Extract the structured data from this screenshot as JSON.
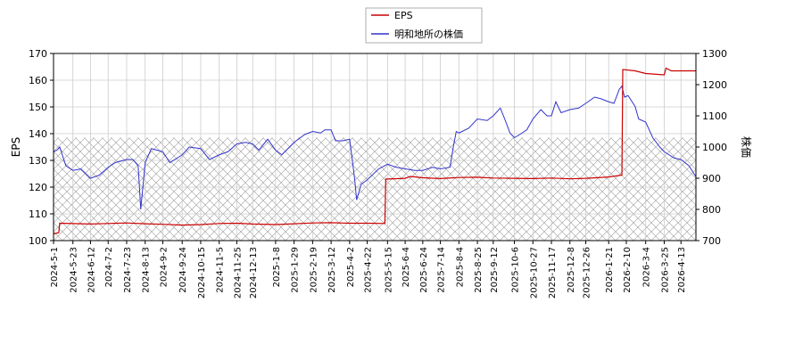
{
  "chart_data": {
    "type": "line",
    "title": "",
    "xlabel": "",
    "ylabel_left": "EPS",
    "ylabel_right": "株価",
    "ylim_left": [
      100,
      170
    ],
    "ylim_right": [
      700,
      1300
    ],
    "yticks_left": [
      100,
      110,
      120,
      130,
      140,
      150,
      160,
      170
    ],
    "yticks_right": [
      700,
      800,
      900,
      1000,
      1100,
      1200,
      1300
    ],
    "x_range": [
      "2024-05-01",
      "2026-04-30"
    ],
    "x_ticks": [
      "2024-5-1",
      "2024-5-23",
      "2024-6-12",
      "2024-7-2",
      "2024-7-23",
      "2024-8-13",
      "2024-9-2",
      "2024-9-24",
      "2024-10-15",
      "2024-11-5",
      "2024-11-25",
      "2024-12-13",
      "2025-1-8",
      "2025-1-29",
      "2025-2-19",
      "2025-3-12",
      "2025-4-2",
      "2025-4-22",
      "2025-5-15",
      "2025-6-4",
      "2025-6-24",
      "2025-7-14",
      "2025-8-4",
      "2025-8-25",
      "2025-9-12",
      "2025-10-6",
      "2025-10-27",
      "2025-11-17",
      "2025-12-8",
      "2025-12-26",
      "2026-1-21",
      "2026-2-10",
      "2026-3-4",
      "2026-3-25",
      "2026-4-13"
    ],
    "grid": true,
    "hatch_band_right": [
      700,
      1030
    ],
    "legend_position": "top-center",
    "colors": {
      "eps": "#cc0000",
      "price": "#3333cc"
    },
    "series": [
      {
        "name": "EPS",
        "axis": "left",
        "color": "#cc0000",
        "points": [
          [
            "2024-05-01",
            102.5
          ],
          [
            "2024-05-07",
            103.0
          ],
          [
            "2024-05-08",
            106.5
          ],
          [
            "2024-06-12",
            106.2
          ],
          [
            "2024-07-02",
            106.4
          ],
          [
            "2024-07-23",
            106.6
          ],
          [
            "2024-08-13",
            106.3
          ],
          [
            "2024-09-02",
            106.1
          ],
          [
            "2024-09-24",
            105.8
          ],
          [
            "2024-10-15",
            106.0
          ],
          [
            "2024-11-05",
            106.4
          ],
          [
            "2024-11-25",
            106.5
          ],
          [
            "2024-12-13",
            106.2
          ],
          [
            "2025-01-08",
            106.0
          ],
          [
            "2025-01-29",
            106.3
          ],
          [
            "2025-02-19",
            106.6
          ],
          [
            "2025-03-12",
            106.7
          ],
          [
            "2025-04-02",
            106.5
          ],
          [
            "2025-04-22",
            106.5
          ],
          [
            "2025-05-12",
            106.4
          ],
          [
            "2025-05-13",
            123.0
          ],
          [
            "2025-06-04",
            123.3
          ],
          [
            "2025-06-10",
            124.0
          ],
          [
            "2025-06-24",
            123.5
          ],
          [
            "2025-07-14",
            123.2
          ],
          [
            "2025-08-04",
            123.6
          ],
          [
            "2025-08-25",
            123.7
          ],
          [
            "2025-09-12",
            123.4
          ],
          [
            "2025-10-06",
            123.3
          ],
          [
            "2025-10-27",
            123.2
          ],
          [
            "2025-11-17",
            123.4
          ],
          [
            "2025-12-08",
            123.1
          ],
          [
            "2025-12-26",
            123.3
          ],
          [
            "2026-01-21",
            123.8
          ],
          [
            "2026-02-05",
            124.5
          ],
          [
            "2026-02-06",
            164.0
          ],
          [
            "2026-02-20",
            163.5
          ],
          [
            "2026-03-04",
            162.5
          ],
          [
            "2026-03-25",
            162.0
          ],
          [
            "2026-03-27",
            164.5
          ],
          [
            "2026-04-02",
            163.5
          ],
          [
            "2026-04-30",
            163.5
          ]
        ]
      },
      {
        "name": "明和地所の株価",
        "axis": "right",
        "color": "#3333cc",
        "points": [
          [
            "2024-05-01",
            985
          ],
          [
            "2024-05-05",
            990
          ],
          [
            "2024-05-08",
            1000
          ],
          [
            "2024-05-15",
            940
          ],
          [
            "2024-05-23",
            925
          ],
          [
            "2024-06-01",
            930
          ],
          [
            "2024-06-12",
            900
          ],
          [
            "2024-06-22",
            910
          ],
          [
            "2024-07-02",
            935
          ],
          [
            "2024-07-10",
            950
          ],
          [
            "2024-07-23",
            960
          ],
          [
            "2024-07-30",
            960
          ],
          [
            "2024-08-05",
            940
          ],
          [
            "2024-08-08",
            800
          ],
          [
            "2024-08-10",
            860
          ],
          [
            "2024-08-13",
            950
          ],
          [
            "2024-08-20",
            995
          ],
          [
            "2024-09-02",
            985
          ],
          [
            "2024-09-10",
            950
          ],
          [
            "2024-09-24",
            975
          ],
          [
            "2024-10-02",
            1000
          ],
          [
            "2024-10-15",
            995
          ],
          [
            "2024-10-25",
            960
          ],
          [
            "2024-11-05",
            975
          ],
          [
            "2024-11-15",
            985
          ],
          [
            "2024-11-25",
            1010
          ],
          [
            "2024-12-05",
            1015
          ],
          [
            "2024-12-13",
            1010
          ],
          [
            "2024-12-20",
            990
          ],
          [
            "2024-12-30",
            1025
          ],
          [
            "2025-01-08",
            990
          ],
          [
            "2025-01-15",
            975
          ],
          [
            "2025-01-29",
            1015
          ],
          [
            "2025-02-10",
            1040
          ],
          [
            "2025-02-19",
            1050
          ],
          [
            "2025-02-28",
            1045
          ],
          [
            "2025-03-05",
            1055
          ],
          [
            "2025-03-12",
            1055
          ],
          [
            "2025-03-17",
            1020
          ],
          [
            "2025-03-25",
            1020
          ],
          [
            "2025-04-02",
            1025
          ],
          [
            "2025-04-05",
            960
          ],
          [
            "2025-04-08",
            890
          ],
          [
            "2025-04-10",
            830
          ],
          [
            "2025-04-15",
            880
          ],
          [
            "2025-04-22",
            895
          ],
          [
            "2025-05-05",
            930
          ],
          [
            "2025-05-15",
            945
          ],
          [
            "2025-05-25",
            935
          ],
          [
            "2025-06-04",
            930
          ],
          [
            "2025-06-15",
            925
          ],
          [
            "2025-06-24",
            925
          ],
          [
            "2025-07-05",
            935
          ],
          [
            "2025-07-14",
            930
          ],
          [
            "2025-07-25",
            935
          ],
          [
            "2025-07-28",
            990
          ],
          [
            "2025-08-01",
            1050
          ],
          [
            "2025-08-04",
            1045
          ],
          [
            "2025-08-15",
            1060
          ],
          [
            "2025-08-25",
            1090
          ],
          [
            "2025-09-05",
            1085
          ],
          [
            "2025-09-12",
            1100
          ],
          [
            "2025-09-20",
            1125
          ],
          [
            "2025-09-25",
            1090
          ],
          [
            "2025-10-01",
            1045
          ],
          [
            "2025-10-06",
            1030
          ],
          [
            "2025-10-12",
            1040
          ],
          [
            "2025-10-20",
            1055
          ],
          [
            "2025-10-27",
            1090
          ],
          [
            "2025-11-05",
            1120
          ],
          [
            "2025-11-12",
            1100
          ],
          [
            "2025-11-17",
            1100
          ],
          [
            "2025-11-22",
            1145
          ],
          [
            "2025-11-28",
            1110
          ],
          [
            "2025-12-08",
            1120
          ],
          [
            "2025-12-18",
            1125
          ],
          [
            "2025-12-26",
            1140
          ],
          [
            "2026-01-05",
            1160
          ],
          [
            "2026-01-12",
            1155
          ],
          [
            "2026-01-21",
            1145
          ],
          [
            "2026-01-27",
            1140
          ],
          [
            "2026-02-02",
            1185
          ],
          [
            "2026-02-05",
            1195
          ],
          [
            "2026-02-08",
            1160
          ],
          [
            "2026-02-12",
            1165
          ],
          [
            "2026-02-20",
            1130
          ],
          [
            "2026-02-24",
            1090
          ],
          [
            "2026-03-04",
            1080
          ],
          [
            "2026-03-12",
            1030
          ],
          [
            "2026-03-20",
            1000
          ],
          [
            "2026-03-25",
            985
          ],
          [
            "2026-04-05",
            965
          ],
          [
            "2026-04-13",
            960
          ],
          [
            "2026-04-22",
            940
          ],
          [
            "2026-04-30",
            905
          ]
        ]
      }
    ]
  }
}
